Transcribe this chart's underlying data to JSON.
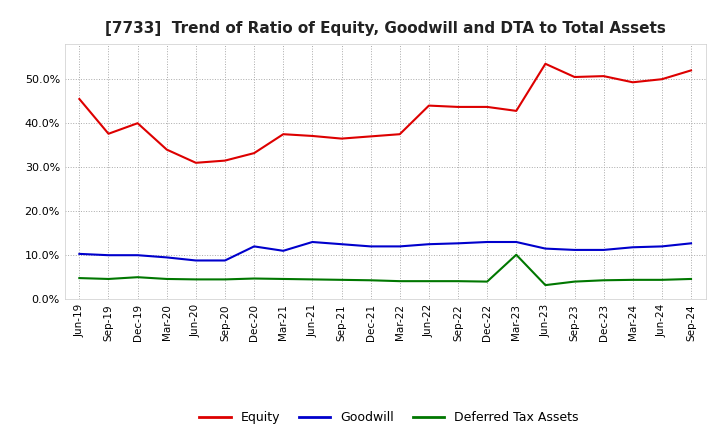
{
  "title": "[7733]  Trend of Ratio of Equity, Goodwill and DTA to Total Assets",
  "x_labels": [
    "Jun-19",
    "Sep-19",
    "Dec-19",
    "Mar-20",
    "Jun-20",
    "Sep-20",
    "Dec-20",
    "Mar-21",
    "Jun-21",
    "Sep-21",
    "Dec-21",
    "Mar-22",
    "Jun-22",
    "Sep-22",
    "Dec-22",
    "Mar-23",
    "Jun-23",
    "Sep-23",
    "Dec-23",
    "Mar-24",
    "Jun-24",
    "Sep-24"
  ],
  "equity": [
    0.455,
    0.376,
    0.4,
    0.34,
    0.31,
    0.315,
    0.332,
    0.375,
    0.371,
    0.365,
    0.37,
    0.375,
    0.44,
    0.437,
    0.437,
    0.428,
    0.535,
    0.505,
    0.507,
    0.493,
    0.5,
    0.52
  ],
  "goodwill": [
    0.103,
    0.1,
    0.1,
    0.095,
    0.088,
    0.088,
    0.12,
    0.11,
    0.13,
    0.125,
    0.12,
    0.12,
    0.125,
    0.127,
    0.13,
    0.13,
    0.115,
    0.112,
    0.112,
    0.118,
    0.12,
    0.127
  ],
  "dta": [
    0.048,
    0.046,
    0.05,
    0.046,
    0.045,
    0.045,
    0.047,
    0.046,
    0.045,
    0.044,
    0.043,
    0.041,
    0.041,
    0.041,
    0.04,
    0.101,
    0.032,
    0.04,
    0.043,
    0.044,
    0.044,
    0.046
  ],
  "equity_color": "#dd0000",
  "goodwill_color": "#0000cc",
  "dta_color": "#007700",
  "background_color": "#ffffff",
  "grid_color": "#aaaaaa",
  "ylim": [
    0.0,
    0.58
  ],
  "yticks": [
    0.0,
    0.1,
    0.2,
    0.3,
    0.4,
    0.5
  ],
  "title_fontsize": 11,
  "tick_fontsize": 7.5,
  "legend_labels": [
    "Equity",
    "Goodwill",
    "Deferred Tax Assets"
  ]
}
